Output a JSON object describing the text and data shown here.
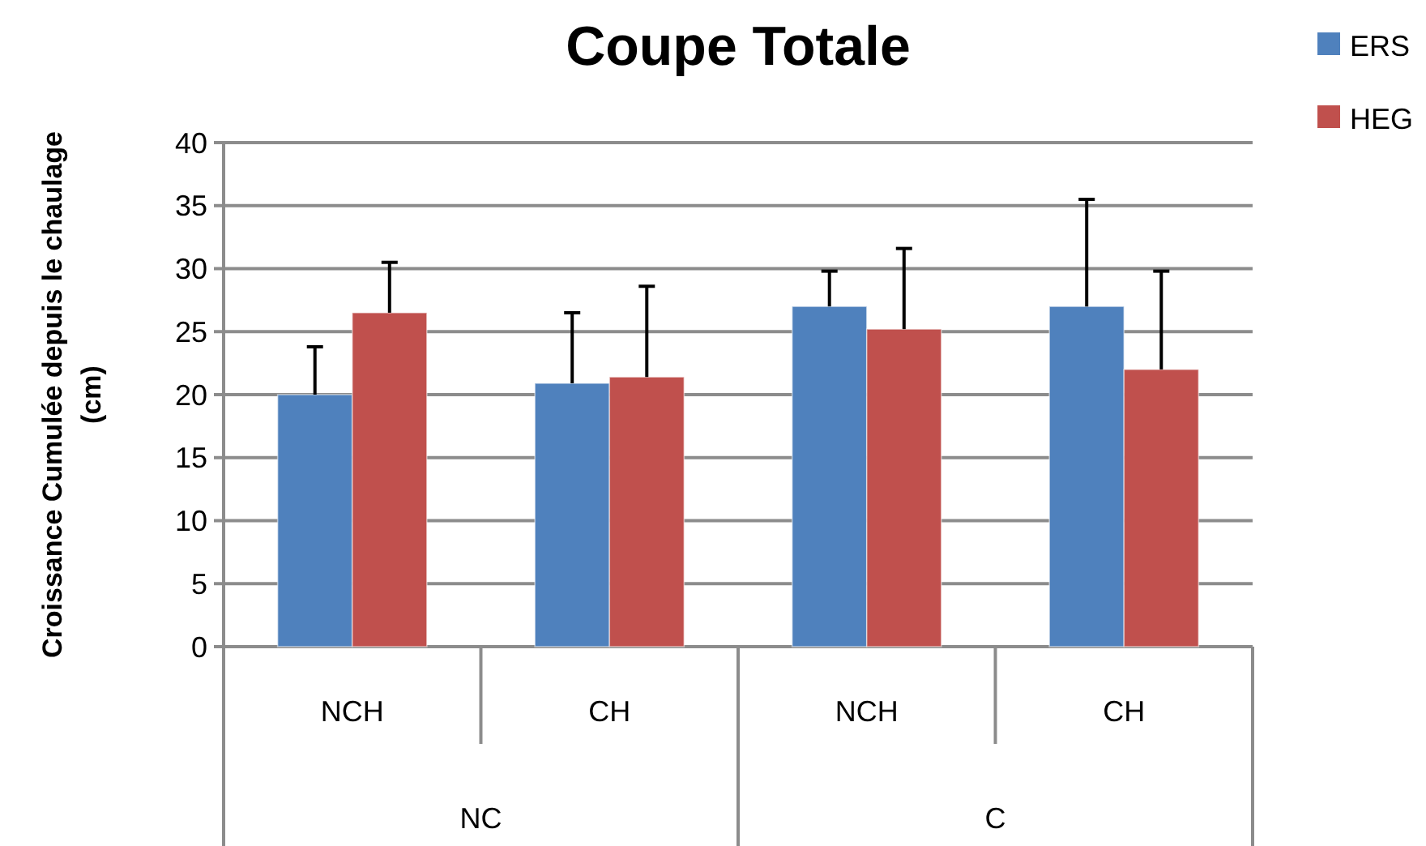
{
  "chart_data": {
    "type": "bar",
    "title": "Coupe Totale",
    "ylabel": "Croissance Cumulée depuis le chaulage (cm)",
    "categories": [
      "NCH",
      "CH",
      "NCH",
      "CH"
    ],
    "annotations": [
      "NC",
      "C"
    ],
    "series": [
      {
        "name": "ERS",
        "color": "#4f81bd",
        "values": [
          20.0,
          20.9,
          27.0,
          27.0
        ],
        "errors": [
          [
            20.0,
            23.8
          ],
          [
            20.9,
            26.5
          ],
          [
            27.0,
            29.8
          ],
          [
            27.0,
            35.5
          ]
        ]
      },
      {
        "name": "HEG",
        "color": "#c0504d",
        "values": [
          26.5,
          21.4,
          25.2,
          22.0
        ],
        "errors": [
          [
            26.5,
            30.5
          ],
          [
            21.4,
            28.6
          ],
          [
            25.2,
            31.6
          ],
          [
            22.0,
            29.8
          ]
        ]
      }
    ],
    "ylim": [
      0,
      40
    ],
    "yticks": [
      0,
      5,
      10,
      15,
      20,
      25,
      30,
      35,
      40
    ],
    "grid": "y",
    "legend": "top right"
  }
}
